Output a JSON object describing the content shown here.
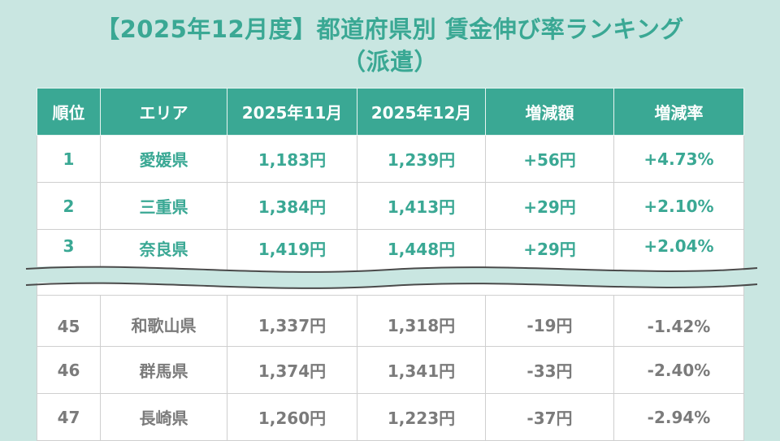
{
  "title": {
    "line1": "【2025年12月度】都道府県別 賃金伸び率ランキング",
    "line2": "（派遣）"
  },
  "table": {
    "headers": [
      "順位",
      "エリア",
      "2025年11月",
      "2025年12月",
      "増減額",
      "増減率"
    ],
    "top_rows": [
      [
        "1",
        "愛媛県",
        "1,183円",
        "1,239円",
        "+56円",
        "+4.73%"
      ],
      [
        "2",
        "三重県",
        "1,384円",
        "1,413円",
        "+29円",
        "+2.10%"
      ],
      [
        "3",
        "奈良県",
        "1,419円",
        "1,448円",
        "+29円",
        "+2.04%"
      ]
    ],
    "bottom_rows": [
      [
        "45",
        "和歌山県",
        "1,337円",
        "1,318円",
        "-19円",
        "-1.42%"
      ],
      [
        "46",
        "群馬県",
        "1,374円",
        "1,341円",
        "-33円",
        "-2.40%"
      ],
      [
        "47",
        "長崎県",
        "1,260円",
        "1,223円",
        "-37円",
        "-2.94%"
      ]
    ]
  },
  "colors": {
    "accent": "#3aa894",
    "background": "#c9e6e1",
    "muted_text": "#7b7b7b"
  }
}
